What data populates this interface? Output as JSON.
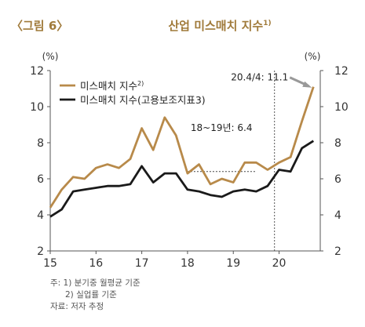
{
  "header": {
    "figure_label": "〈그림 6〉",
    "title": "산업 미스매치 지수",
    "title_sup": "1)"
  },
  "chart_data": {
    "type": "line",
    "y_unit": "(%)",
    "ylim": [
      2,
      12
    ],
    "yticks": [
      "2",
      "4",
      "6",
      "8",
      "10",
      "12"
    ],
    "xlim": [
      2015,
      2020.9
    ],
    "x_ticks": [
      {
        "x": 2015,
        "label": "15"
      },
      {
        "x": 2016,
        "label": "16"
      },
      {
        "x": 2017,
        "label": "17"
      },
      {
        "x": 2018,
        "label": "18"
      },
      {
        "x": 2019,
        "label": "19"
      },
      {
        "x": 2020,
        "label": "20"
      }
    ],
    "legend_position": "top-left",
    "series": [
      {
        "name": "미스매치 지수",
        "name_sup": "2)",
        "color": "#b88a4a",
        "x": [
          2015.0,
          2015.25,
          2015.5,
          2015.75,
          2016.0,
          2016.25,
          2016.5,
          2016.75,
          2017.0,
          2017.25,
          2017.5,
          2017.75,
          2018.0,
          2018.25,
          2018.5,
          2018.75,
          2019.0,
          2019.25,
          2019.5,
          2019.75,
          2020.0,
          2020.25,
          2020.5,
          2020.75
        ],
        "y": [
          4.4,
          5.4,
          6.1,
          6.0,
          6.6,
          6.8,
          6.6,
          7.1,
          8.8,
          7.6,
          9.4,
          8.4,
          6.3,
          6.8,
          5.7,
          6.0,
          5.8,
          6.9,
          6.9,
          6.5,
          6.9,
          7.2,
          9.2,
          11.1
        ]
      },
      {
        "name": "미스매치 지수(고용보조지표3)",
        "name_sup": "",
        "color": "#1a1a1a",
        "x": [
          2015.0,
          2015.25,
          2015.5,
          2015.75,
          2016.0,
          2016.25,
          2016.5,
          2016.75,
          2017.0,
          2017.25,
          2017.5,
          2017.75,
          2018.0,
          2018.25,
          2018.5,
          2018.75,
          2019.0,
          2019.25,
          2019.5,
          2019.75,
          2020.0,
          2020.25,
          2020.5,
          2020.75
        ],
        "y": [
          3.9,
          4.3,
          5.3,
          5.4,
          5.5,
          5.6,
          5.6,
          5.7,
          6.7,
          5.8,
          6.3,
          6.3,
          5.4,
          5.3,
          5.1,
          5.0,
          5.3,
          5.4,
          5.3,
          5.6,
          6.5,
          6.4,
          7.7,
          8.1
        ]
      }
    ],
    "annotations": {
      "latest": {
        "text": "20.4/4: 11.1",
        "x": 2020.75,
        "y": 11.1
      },
      "average": {
        "text": "18~19년: 6.4",
        "x_start": 2018.0,
        "x_end": 2019.5,
        "y": 6.4
      },
      "divider_x": 2019.9
    }
  },
  "notes": {
    "line1": "주: 1) 분기중 월평균 기준",
    "line2": "2) 실업률 기준",
    "source": "자료: 저자 추정"
  }
}
